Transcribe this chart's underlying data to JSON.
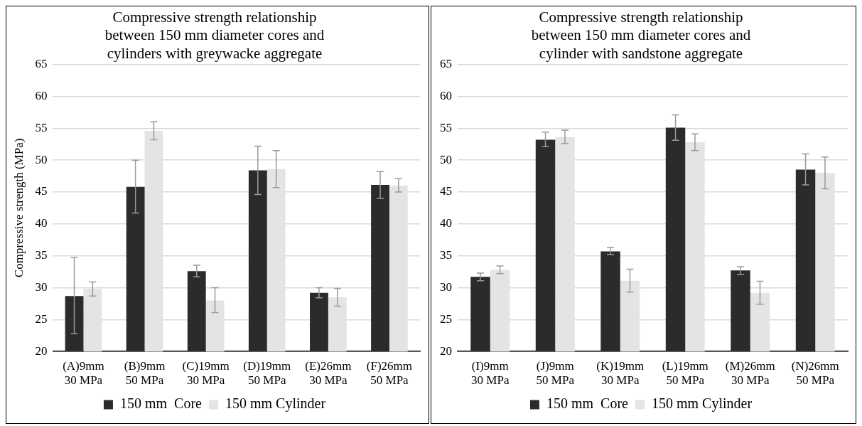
{
  "chart_data": [
    {
      "type": "bar",
      "title": "Compressive strength relationship\nbetween 150 mm diameter cores and\ncylinders with greywacke aggregate",
      "ylabel": "Compressive strength (MPa)",
      "categories": [
        "(A)9mm\n30 MPa",
        "(B)9mm\n50 MPa",
        "(C)19mm\n30 MPa",
        "(D)19mm\n50 MPa",
        "(E)26mm\n30 MPa",
        "(F)26mm\n50 MPa"
      ],
      "series": [
        {
          "name": "150 mm  Core",
          "color": "#2b2b2b",
          "values": [
            28.7,
            45.8,
            32.6,
            48.4,
            29.2,
            46.1
          ],
          "errors": [
            [
              22.8,
              34.7
            ],
            [
              41.7,
              50.0
            ],
            [
              31.7,
              33.5
            ],
            [
              44.6,
              52.2
            ],
            [
              28.4,
              30.0
            ],
            [
              44.0,
              48.2
            ]
          ]
        },
        {
          "name": "150 mm Cylinder",
          "color": "#e4e4e4",
          "values": [
            29.8,
            54.6,
            28.0,
            48.6,
            28.5,
            46.0
          ],
          "errors": [
            [
              28.7,
              30.9
            ],
            [
              53.2,
              56.0
            ],
            [
              26.1,
              30.0
            ],
            [
              45.7,
              51.5
            ],
            [
              27.1,
              29.9
            ],
            [
              45.0,
              47.1
            ]
          ]
        }
      ],
      "ylim": [
        20,
        65
      ],
      "yticks": [
        20,
        25,
        30,
        35,
        40,
        45,
        50,
        55,
        60,
        65
      ],
      "grid": "y",
      "legend": "bottom"
    },
    {
      "type": "bar",
      "title": "Compressive strength relationship\nbetween 150 mm diameter cores and\ncylinder with sandstone aggregate",
      "categories": [
        "(I)9mm\n30 MPa",
        "(J)9mm\n50 MPa",
        "(K)19mm\n30 MPa",
        "(L)19mm\n50 MPa",
        "(M)26mm\n30 MPa",
        "(N)26mm\n50 MPa"
      ],
      "series": [
        {
          "name": "150 mm  Core",
          "color": "#2b2b2b",
          "values": [
            31.7,
            53.2,
            35.7,
            55.1,
            32.7,
            48.5
          ],
          "errors": [
            [
              31.1,
              32.3
            ],
            [
              52.1,
              54.4
            ],
            [
              35.2,
              36.3
            ],
            [
              53.1,
              57.1
            ],
            [
              32.1,
              33.3
            ],
            [
              46.1,
              51.0
            ]
          ]
        },
        {
          "name": "150 mm Cylinder",
          "color": "#e4e4e4",
          "values": [
            32.8,
            53.6,
            31.1,
            52.8,
            29.2,
            48.0
          ],
          "errors": [
            [
              32.2,
              33.4
            ],
            [
              52.6,
              54.7
            ],
            [
              29.3,
              32.9
            ],
            [
              51.5,
              54.1
            ],
            [
              27.4,
              31.0
            ],
            [
              45.5,
              50.5
            ]
          ]
        }
      ],
      "ylim": [
        20,
        65
      ],
      "yticks": [
        20,
        25,
        30,
        35,
        40,
        45,
        50,
        55,
        60,
        65
      ],
      "grid": "y",
      "legend": "bottom"
    }
  ]
}
